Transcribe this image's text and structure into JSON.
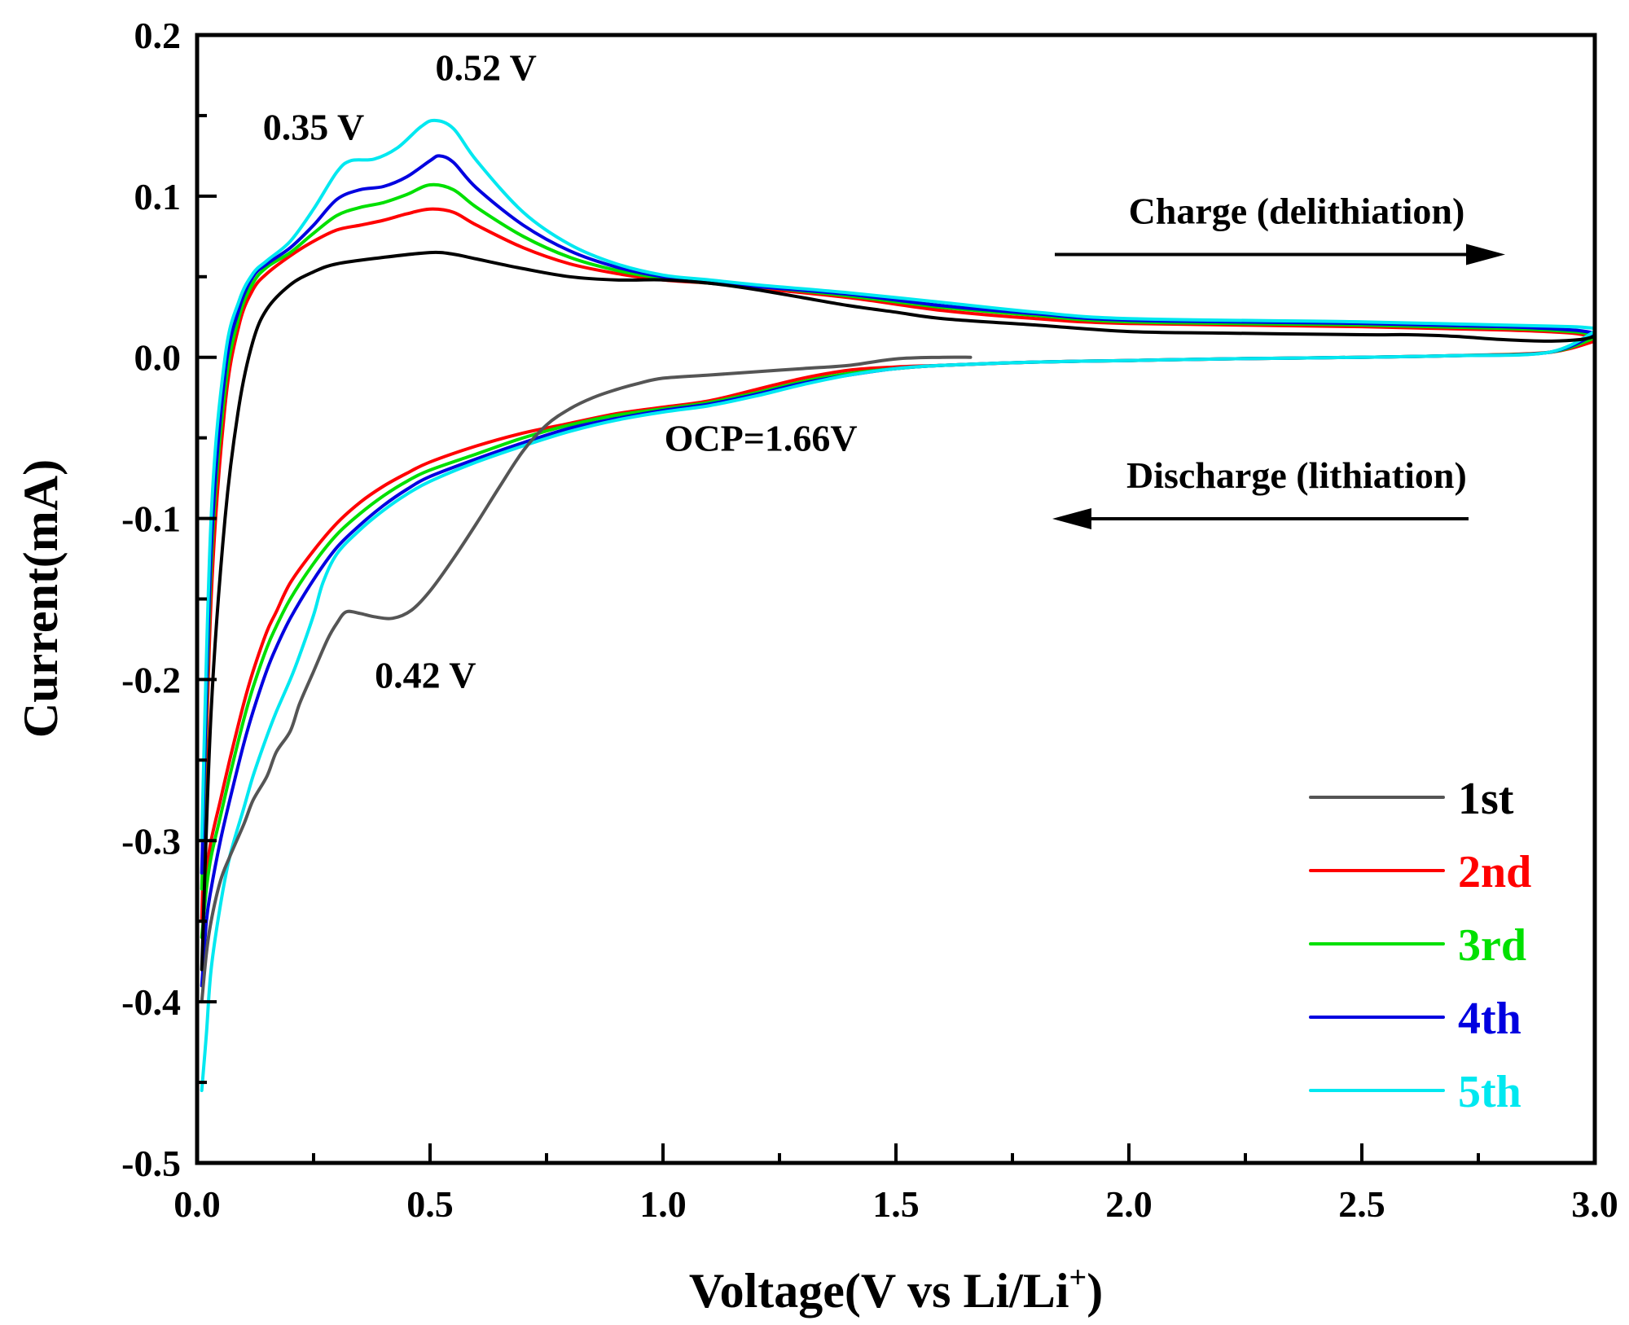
{
  "chart_data": {
    "type": "line",
    "title": "",
    "xlabel": "Voltage(V vs Li/Li",
    "xlabel_sup": "+",
    "xlabel_end": ")",
    "ylabel": "Current(mA)",
    "xlim": [
      0.0,
      3.0
    ],
    "ylim": [
      -0.5,
      0.2
    ],
    "grid": false,
    "legend_position": "bottom-right",
    "x_ticks": [
      "0.0",
      "0.5",
      "1.0",
      "1.5",
      "2.0",
      "2.5",
      "3.0"
    ],
    "x_tick_values": [
      0.0,
      0.5,
      1.0,
      1.5,
      2.0,
      2.5,
      3.0
    ],
    "x_minor_ticks": [
      0.25,
      0.75,
      1.25,
      1.75,
      2.25,
      2.75
    ],
    "y_ticks": [
      "0.2",
      "0.1",
      "0.0",
      "-0.1",
      "-0.2",
      "-0.3",
      "-0.4",
      "-0.5"
    ],
    "y_tick_values": [
      0.2,
      0.1,
      0.0,
      -0.1,
      -0.2,
      -0.3,
      -0.4,
      -0.5
    ],
    "y_minor_ticks": [
      0.15,
      0.05,
      -0.05,
      -0.15,
      -0.25,
      -0.35,
      -0.45
    ],
    "annotations": [
      {
        "text": "0.52 V",
        "x": 0.62,
        "y": 0.172
      },
      {
        "text": "0.35 V",
        "x": 0.25,
        "y": 0.135
      },
      {
        "text": "0.42 V",
        "x": 0.49,
        "y": -0.205
      },
      {
        "text": "OCP=1.66V",
        "x": 1.21,
        "y": -0.058
      },
      {
        "text": "Charge (delithiation)",
        "x": 2.36,
        "y": 0.083,
        "arrow": "right"
      },
      {
        "text": "Discharge (lithiation)",
        "x": 2.36,
        "y": -0.081,
        "arrow": "left"
      }
    ],
    "series": [
      {
        "name": "1st",
        "color": "#555555",
        "label_color": "#000000",
        "charge": {
          "x": [
            0.01,
            0.03,
            0.06,
            0.09,
            0.12,
            0.15,
            0.2,
            0.25,
            0.3,
            0.4,
            0.5,
            0.55,
            0.6,
            0.7,
            0.8,
            0.9,
            1.0,
            1.1,
            1.2,
            1.3,
            1.4,
            1.5,
            1.6,
            1.8,
            2.0,
            2.2,
            2.5,
            2.6,
            2.7,
            2.8,
            2.9,
            2.97,
            3.0
          ],
          "y": [
            -0.38,
            -0.22,
            -0.1,
            -0.03,
            0.01,
            0.03,
            0.045,
            0.053,
            0.058,
            0.062,
            0.065,
            0.064,
            0.061,
            0.055,
            0.05,
            0.048,
            0.048,
            0.046,
            0.042,
            0.037,
            0.032,
            0.028,
            0.024,
            0.02,
            0.016,
            0.015,
            0.014,
            0.014,
            0.013,
            0.011,
            0.01,
            0.011,
            0.013
          ]
        },
        "discharge": {
          "x": [
            1.66,
            1.6,
            1.5,
            1.4,
            1.3,
            1.2,
            1.1,
            1.0,
            0.95,
            0.9,
            0.85,
            0.8,
            0.75,
            0.7,
            0.65,
            0.6,
            0.55,
            0.5,
            0.46,
            0.42,
            0.38,
            0.35,
            0.32,
            0.3,
            0.28,
            0.25,
            0.22,
            0.2,
            0.17,
            0.15,
            0.12,
            0.1,
            0.07,
            0.05,
            0.03,
            0.02,
            0.01
          ],
          "y": [
            0.0,
            0.0,
            -0.001,
            -0.005,
            -0.007,
            -0.009,
            -0.011,
            -0.013,
            -0.016,
            -0.02,
            -0.025,
            -0.032,
            -0.042,
            -0.058,
            -0.08,
            -0.103,
            -0.125,
            -0.145,
            -0.157,
            -0.162,
            -0.161,
            -0.159,
            -0.158,
            -0.165,
            -0.175,
            -0.195,
            -0.215,
            -0.232,
            -0.245,
            -0.26,
            -0.275,
            -0.29,
            -0.31,
            -0.325,
            -0.35,
            -0.37,
            -0.4
          ]
        }
      },
      {
        "name": "2nd",
        "color": "#ff0000",
        "label_color": "#ff0000",
        "charge": {
          "x": [
            0.01,
            0.03,
            0.06,
            0.09,
            0.12,
            0.15,
            0.2,
            0.25,
            0.3,
            0.35,
            0.4,
            0.45,
            0.5,
            0.55,
            0.6,
            0.7,
            0.8,
            0.9,
            1.0,
            1.1,
            1.2,
            1.4,
            1.6,
            1.8,
            2.0,
            2.5,
            2.8,
            2.95,
            3.0
          ],
          "y": [
            -0.35,
            -0.15,
            -0.03,
            0.02,
            0.042,
            0.052,
            0.063,
            0.072,
            0.079,
            0.082,
            0.085,
            0.089,
            0.092,
            0.09,
            0.082,
            0.068,
            0.058,
            0.052,
            0.048,
            0.046,
            0.043,
            0.037,
            0.029,
            0.024,
            0.021,
            0.019,
            0.017,
            0.015,
            0.012
          ]
        },
        "discharge": {
          "x": [
            3.0,
            2.9,
            2.7,
            2.5,
            2.2,
            2.0,
            1.8,
            1.6,
            1.5,
            1.4,
            1.3,
            1.2,
            1.1,
            1.0,
            0.9,
            0.8,
            0.7,
            0.6,
            0.5,
            0.45,
            0.4,
            0.35,
            0.3,
            0.25,
            0.2,
            0.17,
            0.15,
            0.12,
            0.1,
            0.07,
            0.05,
            0.03,
            0.02,
            0.01
          ],
          "y": [
            0.01,
            0.003,
            0.001,
            0.0,
            -0.001,
            -0.002,
            -0.003,
            -0.005,
            -0.006,
            -0.008,
            -0.013,
            -0.02,
            -0.027,
            -0.031,
            -0.035,
            -0.041,
            -0.047,
            -0.055,
            -0.065,
            -0.072,
            -0.08,
            -0.09,
            -0.103,
            -0.12,
            -0.14,
            -0.158,
            -0.17,
            -0.195,
            -0.215,
            -0.25,
            -0.275,
            -0.3,
            -0.32,
            -0.35
          ]
        }
      },
      {
        "name": "3rd",
        "color": "#00e000",
        "label_color": "#00e000",
        "charge": {
          "x": [
            0.01,
            0.03,
            0.06,
            0.09,
            0.12,
            0.15,
            0.2,
            0.25,
            0.3,
            0.35,
            0.4,
            0.45,
            0.5,
            0.55,
            0.6,
            0.7,
            0.8,
            0.9,
            1.0,
            1.1,
            1.2,
            1.4,
            1.6,
            1.8,
            2.0,
            2.5,
            2.8,
            2.95,
            3.0
          ],
          "y": [
            -0.33,
            -0.13,
            -0.02,
            0.025,
            0.046,
            0.056,
            0.065,
            0.077,
            0.088,
            0.093,
            0.096,
            0.101,
            0.107,
            0.104,
            0.093,
            0.075,
            0.062,
            0.054,
            0.049,
            0.046,
            0.044,
            0.038,
            0.031,
            0.026,
            0.022,
            0.02,
            0.018,
            0.016,
            0.014
          ]
        },
        "discharge": {
          "x": [
            3.0,
            2.9,
            2.7,
            2.5,
            2.2,
            2.0,
            1.8,
            1.6,
            1.5,
            1.4,
            1.3,
            1.2,
            1.1,
            1.0,
            0.9,
            0.8,
            0.7,
            0.6,
            0.5,
            0.45,
            0.4,
            0.35,
            0.3,
            0.25,
            0.2,
            0.17,
            0.15,
            0.12,
            0.1,
            0.07,
            0.05,
            0.03,
            0.02,
            0.01
          ],
          "y": [
            0.012,
            0.003,
            0.001,
            0.0,
            -0.001,
            -0.002,
            -0.003,
            -0.005,
            -0.007,
            -0.01,
            -0.015,
            -0.022,
            -0.028,
            -0.032,
            -0.036,
            -0.042,
            -0.05,
            -0.06,
            -0.07,
            -0.077,
            -0.086,
            -0.097,
            -0.11,
            -0.128,
            -0.15,
            -0.167,
            -0.18,
            -0.205,
            -0.225,
            -0.26,
            -0.285,
            -0.31,
            -0.33,
            -0.36
          ]
        }
      },
      {
        "name": "4th",
        "color": "#0000e0",
        "label_color": "#0000e0",
        "charge": {
          "x": [
            0.01,
            0.03,
            0.06,
            0.09,
            0.12,
            0.15,
            0.2,
            0.25,
            0.3,
            0.35,
            0.4,
            0.45,
            0.5,
            0.52,
            0.55,
            0.6,
            0.7,
            0.8,
            0.9,
            1.0,
            1.1,
            1.2,
            1.4,
            1.6,
            1.8,
            2.0,
            2.5,
            2.8,
            2.95,
            3.0
          ],
          "y": [
            -0.32,
            -0.12,
            -0.01,
            0.03,
            0.05,
            0.058,
            0.068,
            0.082,
            0.098,
            0.104,
            0.106,
            0.112,
            0.122,
            0.125,
            0.121,
            0.105,
            0.082,
            0.066,
            0.056,
            0.05,
            0.047,
            0.044,
            0.039,
            0.032,
            0.027,
            0.023,
            0.021,
            0.019,
            0.017,
            0.015
          ]
        },
        "discharge": {
          "x": [
            3.0,
            2.9,
            2.7,
            2.5,
            2.2,
            2.0,
            1.8,
            1.6,
            1.5,
            1.4,
            1.3,
            1.2,
            1.1,
            1.0,
            0.9,
            0.8,
            0.7,
            0.6,
            0.5,
            0.45,
            0.4,
            0.35,
            0.3,
            0.25,
            0.2,
            0.17,
            0.15,
            0.12,
            0.1,
            0.07,
            0.05,
            0.03,
            0.02,
            0.01
          ],
          "y": [
            0.014,
            0.003,
            0.001,
            0.0,
            -0.001,
            -0.002,
            -0.003,
            -0.005,
            -0.007,
            -0.011,
            -0.016,
            -0.023,
            -0.029,
            -0.033,
            -0.038,
            -0.044,
            -0.053,
            -0.063,
            -0.074,
            -0.082,
            -0.092,
            -0.104,
            -0.118,
            -0.138,
            -0.162,
            -0.18,
            -0.194,
            -0.22,
            -0.24,
            -0.275,
            -0.3,
            -0.33,
            -0.35,
            -0.39
          ]
        }
      },
      {
        "name": "5th",
        "color": "#00e8f0",
        "label_color": "#00e8f0",
        "charge": {
          "x": [
            0.01,
            0.03,
            0.06,
            0.09,
            0.12,
            0.15,
            0.2,
            0.25,
            0.3,
            0.33,
            0.38,
            0.43,
            0.48,
            0.51,
            0.55,
            0.6,
            0.7,
            0.8,
            0.9,
            1.0,
            1.1,
            1.2,
            1.4,
            1.6,
            1.8,
            2.0,
            2.5,
            2.8,
            2.95,
            3.0
          ],
          "y": [
            -0.3,
            -0.1,
            0.0,
            0.035,
            0.052,
            0.06,
            0.072,
            0.092,
            0.115,
            0.122,
            0.123,
            0.13,
            0.143,
            0.147,
            0.142,
            0.122,
            0.09,
            0.07,
            0.058,
            0.051,
            0.048,
            0.045,
            0.04,
            0.034,
            0.028,
            0.024,
            0.022,
            0.02,
            0.019,
            0.018
          ]
        },
        "discharge": {
          "x": [
            3.0,
            2.9,
            2.7,
            2.5,
            2.2,
            2.0,
            1.8,
            1.6,
            1.5,
            1.4,
            1.3,
            1.2,
            1.1,
            1.0,
            0.9,
            0.8,
            0.7,
            0.6,
            0.5,
            0.45,
            0.4,
            0.35,
            0.3,
            0.27,
            0.25,
            0.22,
            0.2,
            0.17,
            0.15,
            0.12,
            0.1,
            0.07,
            0.05,
            0.03,
            0.02,
            0.01
          ],
          "y": [
            0.016,
            0.003,
            0.001,
            0.0,
            -0.001,
            -0.002,
            -0.003,
            -0.005,
            -0.007,
            -0.011,
            -0.017,
            -0.024,
            -0.03,
            -0.034,
            -0.039,
            -0.046,
            -0.055,
            -0.065,
            -0.077,
            -0.085,
            -0.095,
            -0.107,
            -0.122,
            -0.14,
            -0.16,
            -0.185,
            -0.2,
            -0.22,
            -0.235,
            -0.26,
            -0.28,
            -0.31,
            -0.34,
            -0.38,
            -0.42,
            -0.455
          ]
        }
      }
    ]
  }
}
